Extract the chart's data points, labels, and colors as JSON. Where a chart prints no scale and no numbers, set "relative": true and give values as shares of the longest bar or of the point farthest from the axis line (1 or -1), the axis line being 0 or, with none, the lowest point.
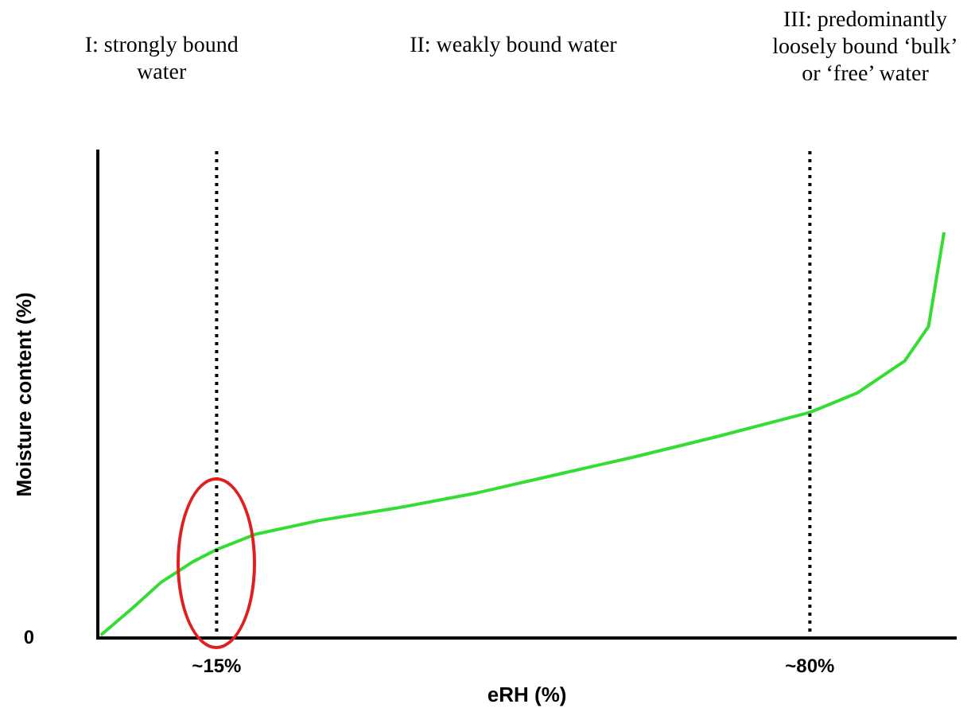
{
  "chart_data": {
    "type": "line",
    "xlabel": "eRH (%)",
    "ylabel": "Moisture content (%)",
    "relative": true,
    "xlim": [
      2,
      96
    ],
    "xticks": [
      {
        "value": 15,
        "label": "~15%"
      },
      {
        "value": 80,
        "label": "~80%"
      }
    ],
    "series": [
      {
        "color": "#33dd33",
        "x": [
          2.3,
          5.5,
          8.9,
          12.4,
          15,
          19.3,
          26.3,
          34.9,
          43.6,
          52.3,
          60.9,
          69.6,
          80,
          85.2,
          90.4,
          93,
          94.7
        ],
        "values": [
          0.007,
          0.068,
          0.137,
          0.188,
          0.218,
          0.256,
          0.29,
          0.321,
          0.358,
          0.403,
          0.447,
          0.495,
          0.556,
          0.604,
          0.683,
          0.768,
          1
        ]
      }
    ],
    "ref_lines": [
      {
        "axis": "x",
        "value": 15,
        "color": "#000000",
        "line_style": "dotted"
      },
      {
        "axis": "x",
        "value": 80,
        "color": "#000000",
        "line_style": "dotted"
      }
    ],
    "annotations": [
      "I: strongly bound water",
      "II: weakly bound water",
      "III: predominantly loosely bound ‘bulk’ or ‘free’ water",
      "0"
    ],
    "grid": false,
    "legend": false,
    "marker": "none",
    "line_style": "solid"
  }
}
